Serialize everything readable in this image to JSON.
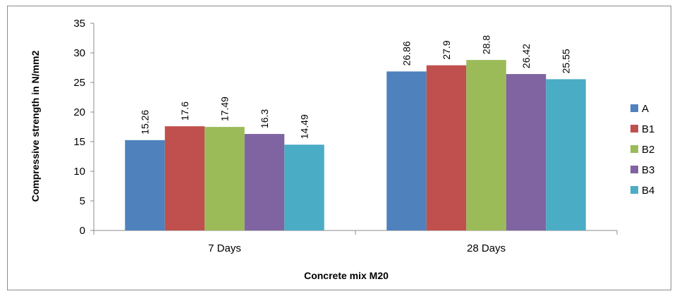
{
  "chart_data": {
    "type": "bar",
    "categories": [
      "7 Days",
      "28 Days"
    ],
    "series": [
      {
        "name": "A",
        "values": [
          15.26,
          26.86
        ],
        "color": "#4F81BD"
      },
      {
        "name": "B1",
        "values": [
          17.6,
          27.9
        ],
        "color": "#C0504D"
      },
      {
        "name": "B2",
        "values": [
          17.49,
          28.8
        ],
        "color": "#9BBB59"
      },
      {
        "name": "B3",
        "values": [
          16.3,
          26.42
        ],
        "color": "#8064A2"
      },
      {
        "name": "B4",
        "values": [
          14.49,
          25.55
        ],
        "color": "#4BACC6"
      }
    ],
    "data_labels": [
      [
        "15.26",
        "17.6",
        "17.49",
        "16.3",
        "14.49"
      ],
      [
        "26.86",
        "27.9",
        "28.8",
        "26.42",
        "25.55"
      ]
    ],
    "xlabel": "Concrete mix M20",
    "ylabel": "Compressive strength in N/mm2",
    "ylim": [
      0,
      35
    ],
    "yticks": [
      0,
      5,
      10,
      15,
      20,
      25,
      30,
      35
    ],
    "ytick_labels": [
      "0",
      "5",
      "10",
      "15",
      "20",
      "25",
      "30",
      "35"
    ],
    "grid": false,
    "legend_position": "right"
  }
}
